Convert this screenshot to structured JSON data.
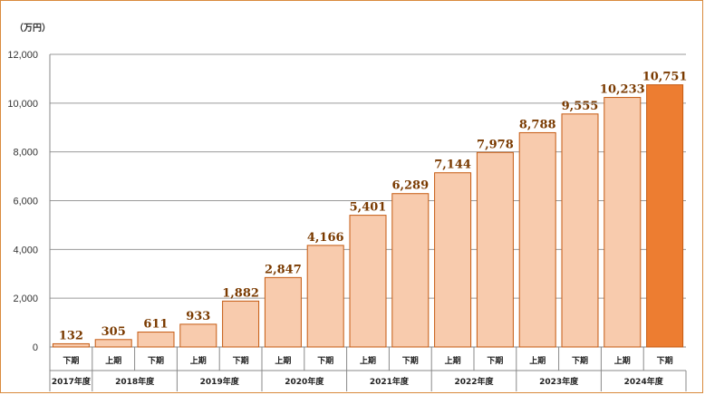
{
  "chart_data": {
    "type": "bar",
    "unit_label": "（万円）",
    "y_tick_labels": [
      "0",
      "2,000",
      "4,000",
      "6,000",
      "8,000",
      "10,000",
      "12,000"
    ],
    "ylim": [
      0,
      12000
    ],
    "grid": true,
    "categories": [
      {
        "half": "下期",
        "year": "2017年度"
      },
      {
        "half": "上期",
        "year": "2018年度"
      },
      {
        "half": "下期",
        "year": "2018年度"
      },
      {
        "half": "上期",
        "year": "2019年度"
      },
      {
        "half": "下期",
        "year": "2019年度"
      },
      {
        "half": "上期",
        "year": "2020年度"
      },
      {
        "half": "下期",
        "year": "2020年度"
      },
      {
        "half": "上期",
        "year": "2021年度"
      },
      {
        "half": "下期",
        "year": "2021年度"
      },
      {
        "half": "上期",
        "year": "2022年度"
      },
      {
        "half": "下期",
        "year": "2022年度"
      },
      {
        "half": "上期",
        "year": "2023年度"
      },
      {
        "half": "下期",
        "year": "2023年度"
      },
      {
        "half": "上期",
        "year": "2024年度"
      },
      {
        "half": "下期",
        "year": "2024年度"
      }
    ],
    "values": [
      132,
      305,
      611,
      933,
      1882,
      2847,
      4166,
      5401,
      6289,
      7144,
      7978,
      8788,
      9555,
      10233,
      10751
    ],
    "value_labels": [
      "132",
      "305",
      "611",
      "933",
      "1,882",
      "2,847",
      "4,166",
      "5,401",
      "6,289",
      "7,144",
      "7,978",
      "8,788",
      "9,555",
      "10,233",
      "10,751"
    ],
    "years": [
      "2017年度",
      "2018年度",
      "2019年度",
      "2020年度",
      "2021年度",
      "2022年度",
      "2023年度",
      "2024年度"
    ],
    "colors": {
      "bar": "#f8cbad",
      "bar_border": "#c55a11",
      "highlight": "#ed7d31",
      "frame": "#d98a3d"
    }
  }
}
